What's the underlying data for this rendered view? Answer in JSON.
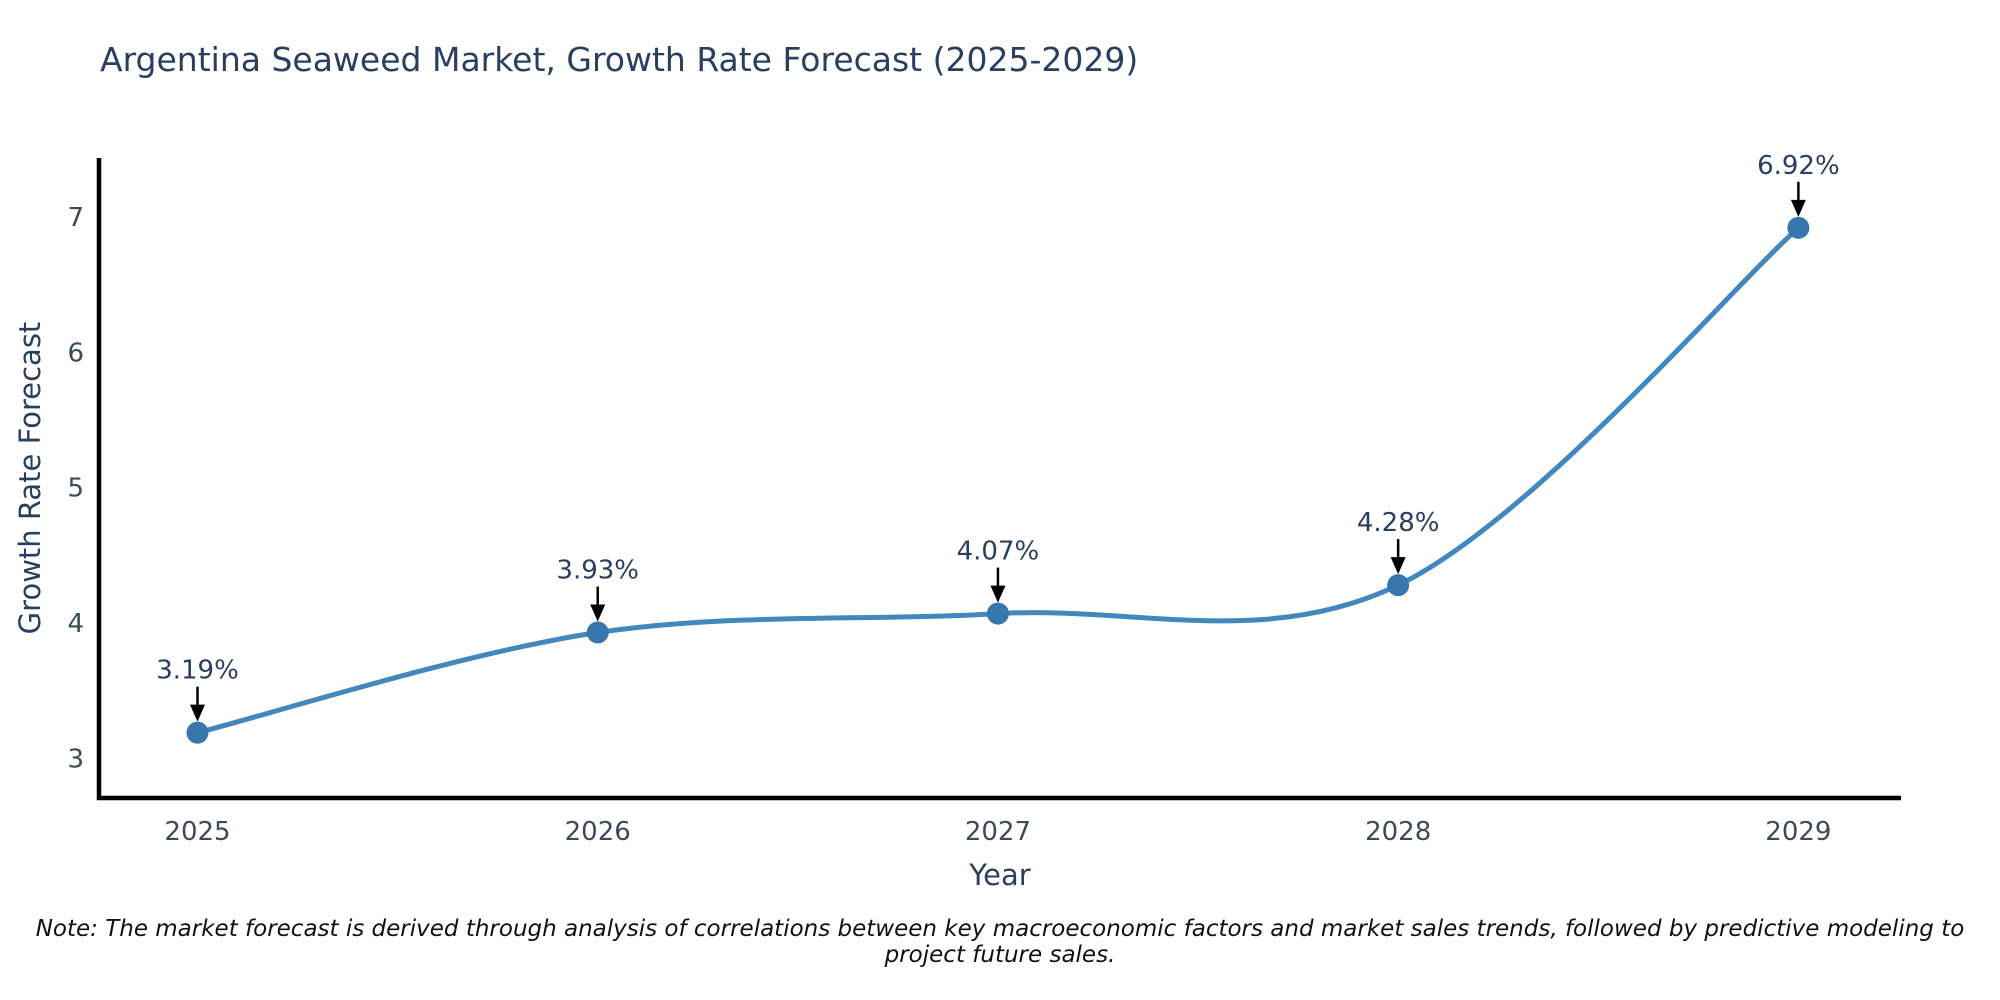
{
  "chart_data": {
    "type": "line",
    "title": "Argentina Seaweed Market, Growth Rate Forecast (2025-2029)",
    "xlabel": "Year",
    "ylabel": "Growth Rate Forecast",
    "x": [
      2025,
      2026,
      2027,
      2028,
      2029
    ],
    "series": [
      {
        "name": "Growth Rate Forecast",
        "values": [
          3.19,
          3.93,
          4.07,
          4.28,
          6.92
        ],
        "point_labels": [
          "3.19%",
          "3.93%",
          "4.07%",
          "4.28%",
          "6.92%"
        ]
      }
    ],
    "x_tick_labels": [
      "2025",
      "2026",
      "2027",
      "2028",
      "2029"
    ],
    "y_tick_labels": [
      "3",
      "4",
      "5",
      "6",
      "7"
    ],
    "y_ticks": [
      3,
      4,
      5,
      6,
      7
    ],
    "ylim": [
      2.69,
      7.43
    ],
    "line_shape": "spline",
    "grid": false,
    "legend_position": "none",
    "annotations_have_arrows": true,
    "colors": {
      "line": "#4287bd",
      "marker": "#3876ae",
      "axis": "#000000",
      "tick_text": "#3d4a59",
      "title_text": "#2a3f5f",
      "annotation_text": "#2a3f5f",
      "arrow": "#000000",
      "background": "#ffffff"
    }
  },
  "note": "Note: The market forecast is derived through analysis of correlations between key macroeconomic factors and market sales trends, followed by predictive modeling to project future sales."
}
